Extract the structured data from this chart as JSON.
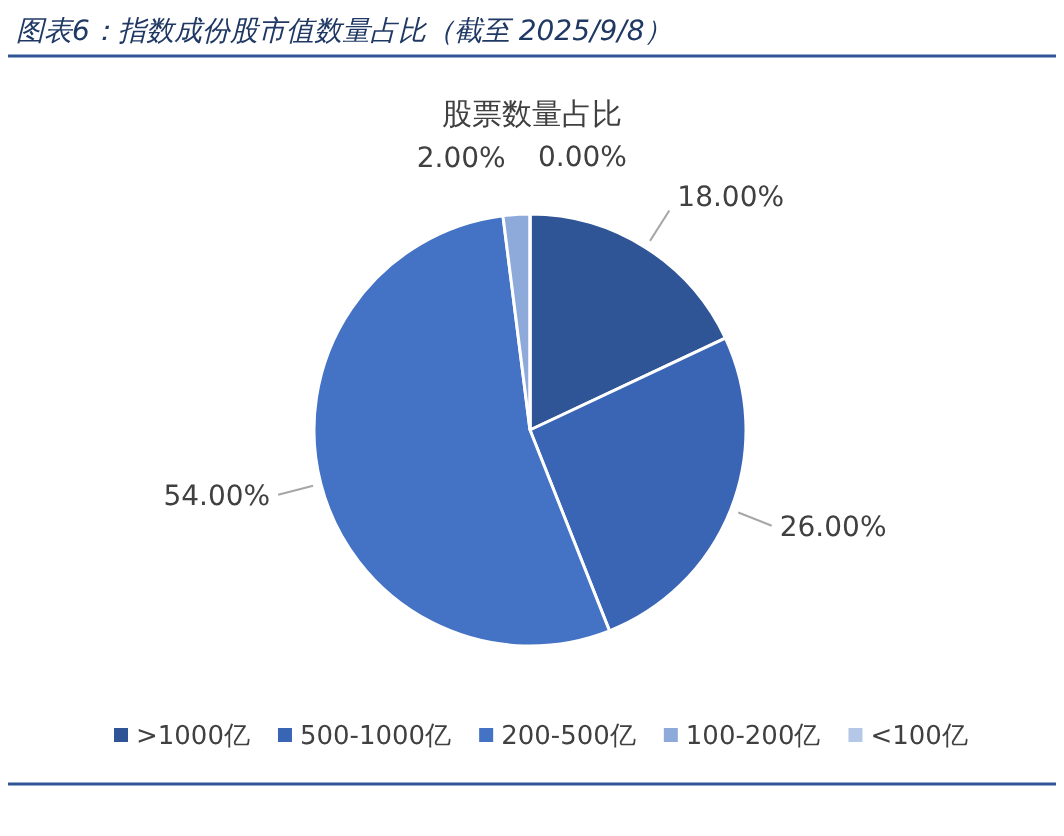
{
  "chart_data": {
    "type": "pie",
    "title": "图表6：指数成份股市值数量占比（截至 2025/9/8）",
    "subtitle": "股票数量占比",
    "categories": [
      ">1000亿",
      "500-1000亿",
      "200-500亿",
      "100-200亿",
      "<100亿"
    ],
    "values": [
      18,
      26,
      54,
      2,
      0
    ],
    "value_labels": [
      "18.00%",
      "26.00%",
      "54.00%",
      "2.00%",
      "0.00%"
    ],
    "colors": [
      "#2f5597",
      "#3a64b4",
      "#4472c4",
      "#8eaadb",
      "#b4c7e7"
    ],
    "legend": "bottom"
  }
}
